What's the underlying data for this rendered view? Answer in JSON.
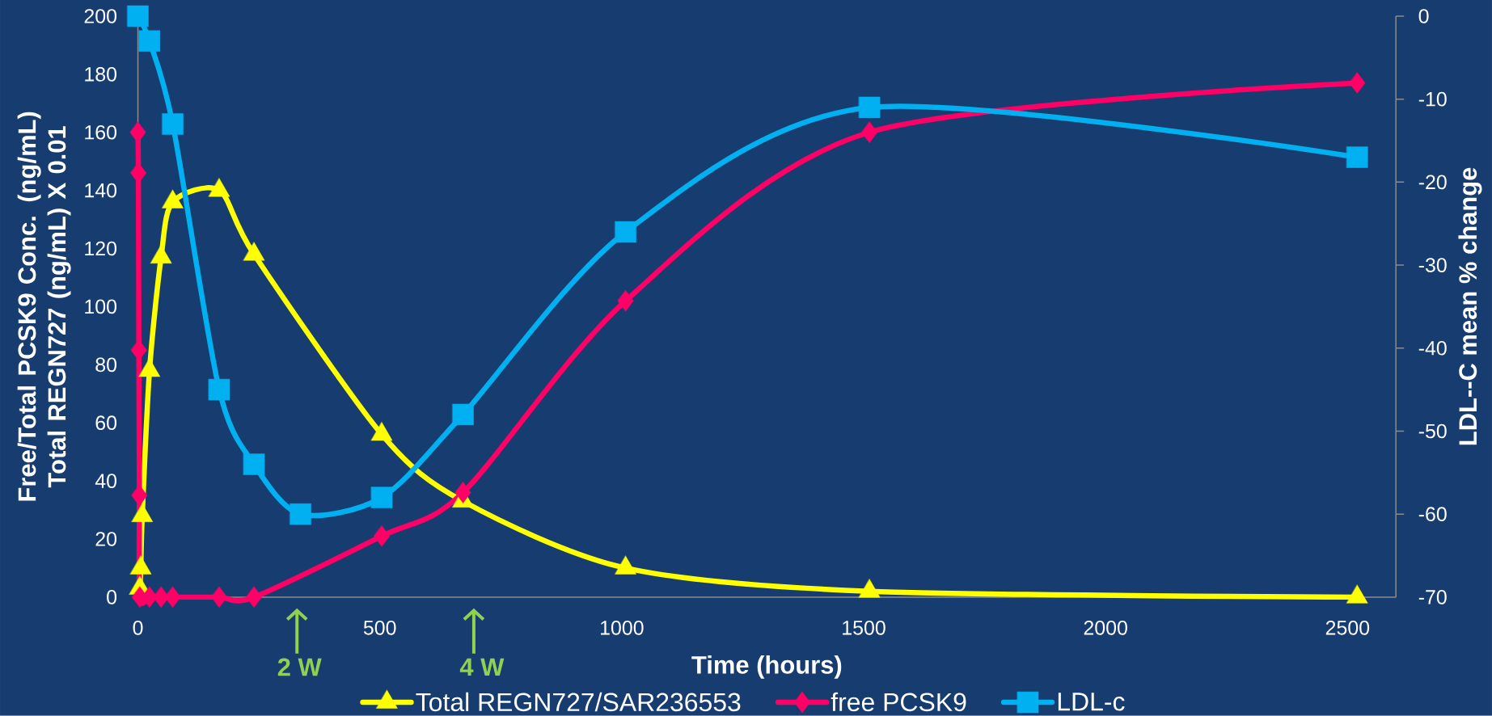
{
  "chart_data": {
    "type": "line",
    "xlabel": "Time (hours)",
    "ylabel": "Free/Total PCSK9 Conc. (ng/mL) Total REGN727 (ng/mL) X 0.01",
    "y2label": "LDL--C mean % change",
    "xlim": [
      0,
      2600
    ],
    "xticks": [
      0,
      500,
      1000,
      1500,
      2000,
      2500
    ],
    "ylim": [
      0,
      200
    ],
    "yticks": [
      0,
      20,
      40,
      60,
      80,
      100,
      120,
      140,
      160,
      180,
      200
    ],
    "y2lim": [
      -70,
      0
    ],
    "y2ticks": [
      -70,
      -60,
      -50,
      -40,
      -30,
      -20,
      -10,
      0
    ],
    "legend": "bottom",
    "annotations": [
      "2 W",
      "4 W"
    ],
    "series": [
      {
        "name": "Total REGN727/SAR236553",
        "color": "#ffff00",
        "marker": "triangle",
        "x": [
          4,
          6,
          9,
          24,
          48,
          72,
          168,
          240,
          504,
          672,
          1008,
          1512,
          2520
        ],
        "values": [
          3,
          10,
          28,
          78,
          117,
          136,
          140,
          118,
          56,
          33,
          10,
          2,
          0
        ]
      },
      {
        "name": "free PCSK9",
        "color": "#ff0066",
        "marker": "diamond",
        "x": [
          0,
          1,
          2,
          3,
          4,
          24,
          48,
          72,
          168,
          240,
          504,
          672,
          1008,
          1512,
          2520
        ],
        "values": [
          160,
          146,
          85,
          35,
          0,
          0,
          0,
          0,
          0,
          0,
          21,
          36,
          102,
          160,
          177
        ]
      },
      {
        "name": "LDL-c",
        "color": "#00b0f0",
        "marker": "square",
        "axis": "y2",
        "x": [
          0,
          24,
          72,
          168,
          240,
          336,
          504,
          672,
          1008,
          1512,
          2520
        ],
        "values": [
          0,
          -3,
          -13,
          -45,
          -54,
          -60,
          -58,
          -48,
          -26,
          -11,
          -17
        ]
      }
    ]
  }
}
